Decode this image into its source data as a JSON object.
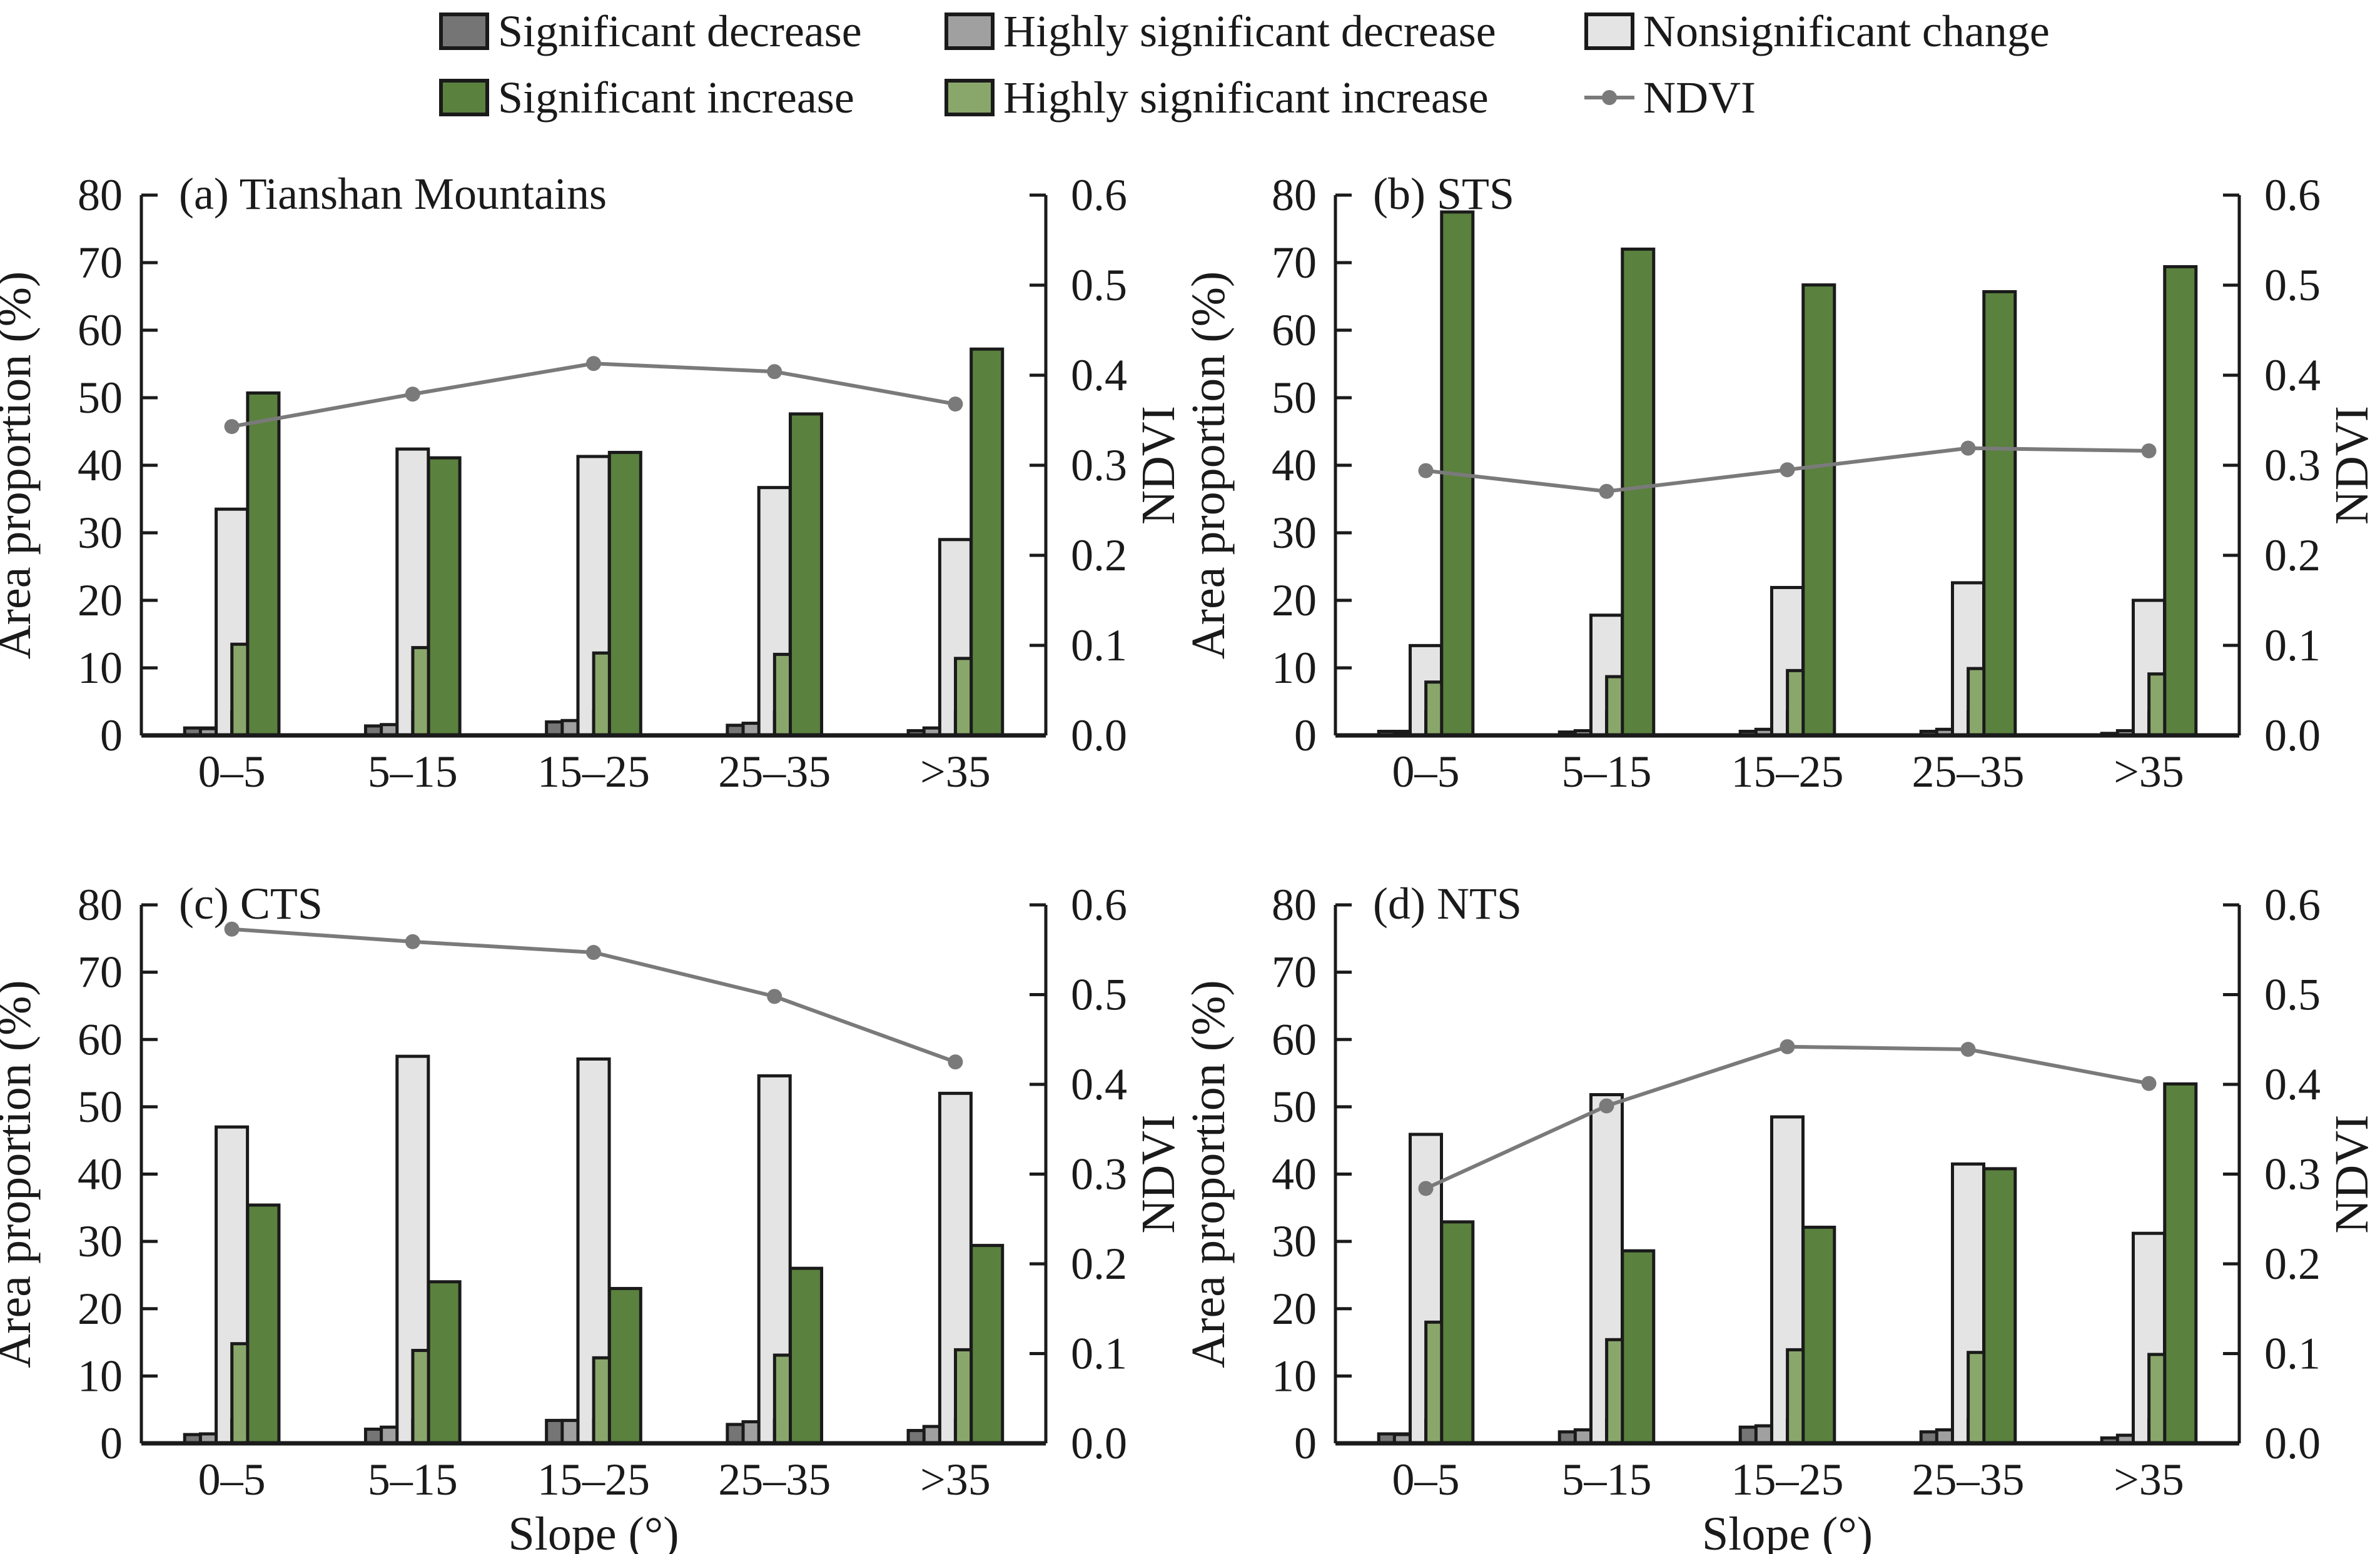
{
  "legend": {
    "items": [
      {
        "label": "Significant decrease",
        "color": "#757575",
        "kind": "bar"
      },
      {
        "label": "Highly significant decrease",
        "color": "#a0a0a0",
        "kind": "bar"
      },
      {
        "label": "Nonsignificant change",
        "color": "#e4e4e4",
        "kind": "bar"
      },
      {
        "label": "Significant increase",
        "color": "#5a813e",
        "kind": "bar"
      },
      {
        "label": "Highly significant increase",
        "color": "#8aa76b",
        "kind": "bar"
      },
      {
        "label": "NDVI",
        "color": "#7a7a7a",
        "kind": "line"
      }
    ]
  },
  "chart_data": [
    {
      "type": "bar",
      "title": "(a) Tianshan Mountains",
      "xlabel": "",
      "ylabel": "Area proportion (%)",
      "y2label": "NDVI",
      "ylim": [
        0,
        80
      ],
      "y2lim": [
        0,
        0.6
      ],
      "yticks": [
        "0",
        "10",
        "20",
        "30",
        "40",
        "50",
        "60",
        "70",
        "80"
      ],
      "y2ticks": [
        "0.0",
        "0.1",
        "0.2",
        "0.3",
        "0.4",
        "0.5",
        "0.6"
      ],
      "categories": [
        "0–5",
        "5–15",
        "15–25",
        "25–35",
        ">35"
      ],
      "series": [
        {
          "name": "Significant decrease",
          "values": [
            1.1,
            1.4,
            2.0,
            1.5,
            0.7
          ]
        },
        {
          "name": "Highly significant decrease",
          "values": [
            1.0,
            1.6,
            2.2,
            1.8,
            1.1
          ]
        },
        {
          "name": "Nonsignificant change",
          "values": [
            33.5,
            42.4,
            41.3,
            36.7,
            29.0
          ]
        },
        {
          "name": "Highly significant increase",
          "values": [
            13.5,
            13.0,
            12.2,
            12.0,
            11.4
          ]
        },
        {
          "name": "Significant increase",
          "values": [
            50.7,
            41.1,
            41.9,
            47.6,
            57.2
          ]
        }
      ],
      "line": {
        "name": "NDVI",
        "axis": "right",
        "values": [
          0.343,
          0.379,
          0.413,
          0.404,
          0.368
        ]
      },
      "grid": false
    },
    {
      "type": "bar",
      "title": "(b) STS",
      "xlabel": "",
      "ylabel": "Area proportion (%)",
      "y2label": "NDVI",
      "ylim": [
        0,
        80
      ],
      "y2lim": [
        0,
        0.6
      ],
      "yticks": [
        "0",
        "10",
        "20",
        "30",
        "40",
        "50",
        "60",
        "70",
        "80"
      ],
      "y2ticks": [
        "0.0",
        "0.1",
        "0.2",
        "0.3",
        "0.4",
        "0.5",
        "0.6"
      ],
      "categories": [
        "0–5",
        "5–15",
        "15–25",
        "25–35",
        ">35"
      ],
      "series": [
        {
          "name": "Significant decrease",
          "values": [
            0.6,
            0.5,
            0.6,
            0.6,
            0.3
          ]
        },
        {
          "name": "Highly significant decrease",
          "values": [
            0.5,
            0.7,
            0.9,
            0.9,
            0.7
          ]
        },
        {
          "name": "Nonsignificant change",
          "values": [
            13.3,
            17.8,
            21.9,
            22.6,
            20.0
          ]
        },
        {
          "name": "Highly significant increase",
          "values": [
            7.9,
            8.7,
            9.6,
            9.9,
            9.1
          ]
        },
        {
          "name": "Significant increase",
          "values": [
            77.5,
            72.0,
            66.7,
            65.7,
            69.4
          ]
        }
      ],
      "line": {
        "name": "NDVI",
        "axis": "right",
        "values": [
          0.294,
          0.271,
          0.295,
          0.319,
          0.316
        ]
      },
      "grid": false
    },
    {
      "type": "bar",
      "title": "(c) CTS",
      "xlabel": "Slope (°)",
      "ylabel": "Area proportion (%)",
      "y2label": "NDVI",
      "ylim": [
        0,
        80
      ],
      "y2lim": [
        0,
        0.6
      ],
      "yticks": [
        "0",
        "10",
        "20",
        "30",
        "40",
        "50",
        "60",
        "70",
        "80"
      ],
      "y2ticks": [
        "0.0",
        "0.1",
        "0.2",
        "0.3",
        "0.4",
        "0.5",
        "0.6"
      ],
      "categories": [
        "0–5",
        "5–15",
        "15–25",
        "25–35",
        ">35"
      ],
      "series": [
        {
          "name": "Significant decrease",
          "values": [
            1.3,
            2.1,
            3.4,
            2.8,
            1.9
          ]
        },
        {
          "name": "Highly significant decrease",
          "values": [
            1.4,
            2.4,
            3.4,
            3.2,
            2.5
          ]
        },
        {
          "name": "Nonsignificant change",
          "values": [
            47.0,
            57.5,
            57.1,
            54.6,
            52.0
          ]
        },
        {
          "name": "Highly significant increase",
          "values": [
            14.8,
            13.8,
            12.7,
            13.1,
            13.9
          ]
        },
        {
          "name": "Significant increase",
          "values": [
            35.4,
            24.0,
            23.0,
            26.0,
            29.4
          ]
        }
      ],
      "line": {
        "name": "NDVI",
        "axis": "right",
        "values": [
          0.573,
          0.559,
          0.547,
          0.498,
          0.425
        ]
      },
      "grid": false
    },
    {
      "type": "bar",
      "title": "(d) NTS",
      "xlabel": "Slope (°)",
      "ylabel": "Area proportion (%)",
      "y2label": "NDVI",
      "ylim": [
        0,
        80
      ],
      "y2lim": [
        0,
        0.6
      ],
      "yticks": [
        "0",
        "10",
        "20",
        "30",
        "40",
        "50",
        "60",
        "70",
        "80"
      ],
      "y2ticks": [
        "0.0",
        "0.1",
        "0.2",
        "0.3",
        "0.4",
        "0.5",
        "0.6"
      ],
      "categories": [
        "0–5",
        "5–15",
        "15–25",
        "25–35",
        ">35"
      ],
      "series": [
        {
          "name": "Significant decrease",
          "values": [
            1.4,
            1.7,
            2.4,
            1.7,
            0.8
          ]
        },
        {
          "name": "Highly significant decrease",
          "values": [
            1.3,
            2.0,
            2.6,
            2.0,
            1.2
          ]
        },
        {
          "name": "Nonsignificant change",
          "values": [
            45.9,
            51.8,
            48.5,
            41.5,
            31.2
          ]
        },
        {
          "name": "Highly significant increase",
          "values": [
            18.0,
            15.4,
            13.9,
            13.5,
            13.2
          ]
        },
        {
          "name": "Significant increase",
          "values": [
            32.9,
            28.6,
            32.1,
            40.8,
            53.4
          ]
        }
      ],
      "line": {
        "name": "NDVI",
        "axis": "right",
        "values": [
          0.284,
          0.376,
          0.442,
          0.439,
          0.401
        ]
      },
      "grid": false
    }
  ]
}
